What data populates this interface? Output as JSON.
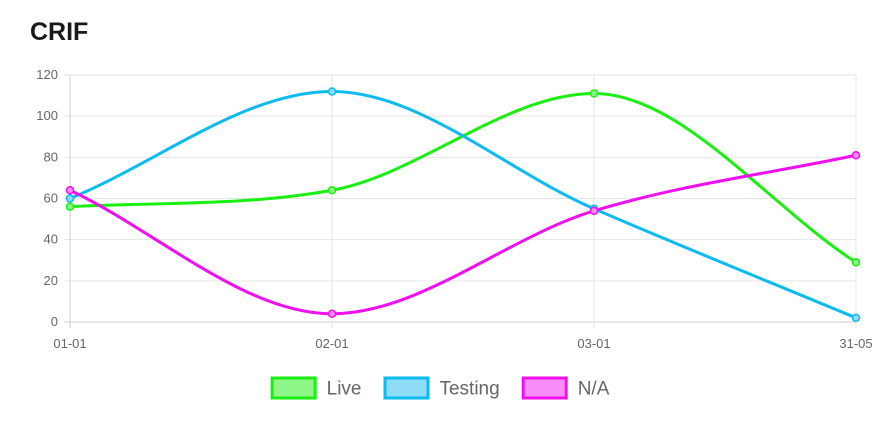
{
  "title": "CRIF",
  "chart_data": {
    "type": "line",
    "title": "CRIF",
    "categories": [
      "01-01",
      "02-01",
      "03-01",
      "31-05"
    ],
    "ylim": [
      0,
      120
    ],
    "yticks": [
      0,
      20,
      40,
      60,
      80,
      100,
      120
    ],
    "grid": true,
    "legend_position": "bottom",
    "series": [
      {
        "name": "Live",
        "color": "#1aef12",
        "fill": "#8ff78a",
        "values": [
          56,
          64,
          111,
          29
        ]
      },
      {
        "name": "Testing",
        "color": "#0cbbf2",
        "fill": "#8fdcf7",
        "values": [
          60,
          112,
          55,
          2
        ]
      },
      {
        "name": "N/A",
        "color": "#f00ff0",
        "fill": "#f78ef7",
        "values": [
          64,
          4,
          54,
          81
        ]
      }
    ]
  }
}
